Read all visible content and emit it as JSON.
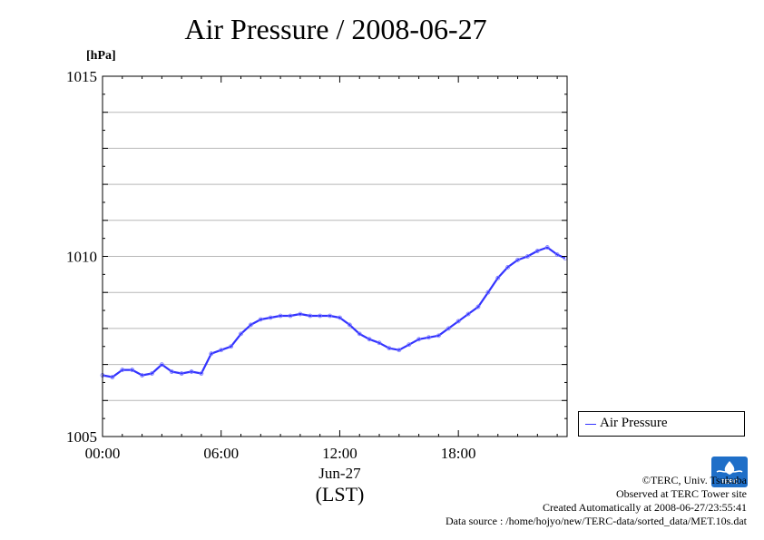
{
  "page": {
    "title": "Air Pressure / 2008-06-27",
    "unit": "[hPa]",
    "credits": [
      "©TERC, Univ. Tsukuba",
      "Observed at TERC Tower site",
      "Created Automatically at 2008-06-27/23:55:41",
      "Data source : /home/hojyo/new/TERC-data/sorted_data/MET.10s.dat"
    ],
    "logo_text": "TERC"
  },
  "colors": {
    "series": "#3333ff",
    "grid": "#b8b8b8",
    "axis": "#000000"
  },
  "chart_data": {
    "type": "line",
    "title": "Air Pressure / 2008-06-27",
    "ylabel": "[hPa]",
    "xlabel": "Jun-27",
    "xlabel_tz": "(LST)",
    "ylim": [
      1005,
      1015
    ],
    "xlim": [
      0,
      23.5
    ],
    "x_unit": "hour",
    "x_ticks": [
      "00:00",
      "06:00",
      "12:00",
      "18:00"
    ],
    "x_tick_values": [
      0,
      6,
      12,
      18
    ],
    "y_ticks": [
      "1005",
      "1010",
      "1015"
    ],
    "y_tick_values": [
      1005,
      1010,
      1015
    ],
    "grid": true,
    "grid_y_step": 1,
    "legend_position": "right",
    "series": [
      {
        "name": "Air Pressure",
        "x": [
          0,
          0.5,
          1,
          1.5,
          2,
          2.5,
          3,
          3.5,
          4,
          4.5,
          5,
          5.5,
          6,
          6.5,
          7,
          7.5,
          8,
          8.5,
          9,
          9.5,
          10,
          10.5,
          11,
          11.5,
          12,
          12.5,
          13,
          13.5,
          14,
          14.5,
          15,
          15.5,
          16,
          16.5,
          17,
          17.5,
          18,
          18.5,
          19,
          19.5,
          20,
          20.5,
          21,
          21.5,
          22,
          22.5,
          23,
          23.4
        ],
        "y": [
          1006.7,
          1006.65,
          1006.85,
          1006.85,
          1006.7,
          1006.75,
          1007.0,
          1006.8,
          1006.75,
          1006.8,
          1006.75,
          1007.3,
          1007.4,
          1007.5,
          1007.85,
          1008.1,
          1008.25,
          1008.3,
          1008.35,
          1008.35,
          1008.4,
          1008.35,
          1008.35,
          1008.35,
          1008.3,
          1008.1,
          1007.85,
          1007.7,
          1007.6,
          1007.45,
          1007.4,
          1007.55,
          1007.7,
          1007.75,
          1007.8,
          1008.0,
          1008.2,
          1008.4,
          1008.6,
          1009.0,
          1009.4,
          1009.7,
          1009.9,
          1010.0,
          1010.15,
          1010.25,
          1010.05,
          1009.95
        ]
      }
    ]
  }
}
